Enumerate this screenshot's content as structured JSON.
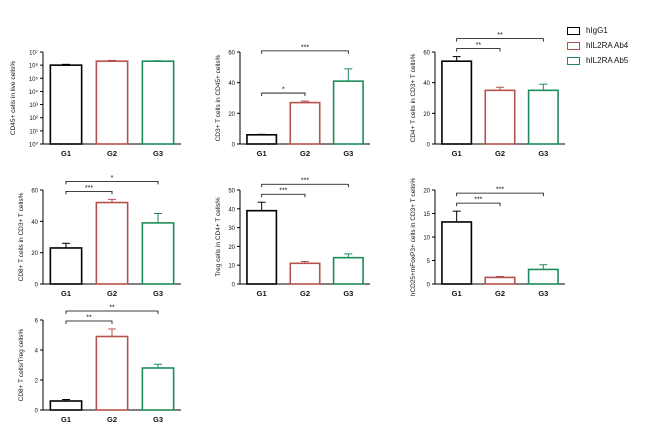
{
  "legend": {
    "items": [
      {
        "label": "hIgG1",
        "color": "#000000"
      },
      {
        "label": "hIL2RA Ab4",
        "color": "#b5524b"
      },
      {
        "label": "hIL2RA Ab5",
        "color": "#1e8c5a"
      }
    ]
  },
  "chart_data": [
    {
      "type": "bar",
      "categories": [
        "G1",
        "G2",
        "G3"
      ],
      "values": [
        1000000,
        2000000,
        2000000
      ],
      "errors": [
        150000,
        300000,
        150000
      ],
      "ylabel": "CD45+ cells in live cells%",
      "yscale": "log",
      "ylim": [
        1,
        10000000
      ],
      "yticks": [
        1,
        10,
        100,
        1000,
        10000,
        100000,
        1000000,
        10000000
      ],
      "ytick_labels": [
        "10⁰",
        "10¹",
        "10²",
        "10³",
        "10⁴",
        "10⁵",
        "10⁶",
        "10⁷"
      ],
      "colors": [
        "#000000",
        "#b5524b",
        "#1e8c5a"
      ],
      "annotations": []
    },
    {
      "type": "bar",
      "categories": [
        "G1",
        "G2",
        "G3"
      ],
      "values": [
        6,
        27,
        41
      ],
      "errors": [
        0.3,
        1,
        8
      ],
      "ylabel": "CD3+ T cells in CD45+ cells%",
      "yscale": "linear",
      "ylim": [
        0,
        60
      ],
      "yticks": [
        0,
        20,
        40,
        60
      ],
      "ytick_labels": [
        "0",
        "20",
        "40",
        "60"
      ],
      "colors": [
        "#000000",
        "#b5524b",
        "#1e8c5a"
      ],
      "annotations": [
        {
          "from": 0,
          "to": 1,
          "label": "*"
        },
        {
          "from": 0,
          "to": 2,
          "label": "***"
        }
      ]
    },
    {
      "type": "bar",
      "categories": [
        "G1",
        "G2",
        "G3"
      ],
      "values": [
        54,
        35,
        35
      ],
      "errors": [
        3,
        2,
        4
      ],
      "ylabel": "CD4+ T cells in CD3+ T cells%",
      "yscale": "linear",
      "ylim": [
        0,
        60
      ],
      "yticks": [
        0,
        20,
        40,
        60
      ],
      "ytick_labels": [
        "0",
        "20",
        "40",
        "60"
      ],
      "colors": [
        "#000000",
        "#b5524b",
        "#1e8c5a"
      ],
      "annotations": [
        {
          "from": 0,
          "to": 1,
          "label": "**"
        },
        {
          "from": 0,
          "to": 2,
          "label": "**"
        }
      ]
    },
    {
      "type": "bar",
      "categories": [
        "G1",
        "G2",
        "G3"
      ],
      "values": [
        23,
        52,
        39
      ],
      "errors": [
        3,
        2,
        6
      ],
      "ylabel": "CD8+ T cells in CD3+ T cells%",
      "yscale": "linear",
      "ylim": [
        0,
        60
      ],
      "yticks": [
        0,
        20,
        40,
        60
      ],
      "ytick_labels": [
        "0",
        "20",
        "40",
        "60"
      ],
      "colors": [
        "#000000",
        "#b5524b",
        "#1e8c5a"
      ],
      "annotations": [
        {
          "from": 0,
          "to": 1,
          "label": "***"
        },
        {
          "from": 0,
          "to": 2,
          "label": "*"
        }
      ]
    },
    {
      "type": "bar",
      "categories": [
        "G1",
        "G2",
        "G3"
      ],
      "values": [
        39,
        11,
        14
      ],
      "errors": [
        4.5,
        1,
        2
      ],
      "ylabel": "Treg cells in CD4+ T cells%",
      "yscale": "linear",
      "ylim": [
        0,
        50
      ],
      "yticks": [
        0,
        10,
        20,
        30,
        40,
        50
      ],
      "ytick_labels": [
        "0",
        "10",
        "20",
        "30",
        "40",
        "50"
      ],
      "colors": [
        "#000000",
        "#b5524b",
        "#1e8c5a"
      ],
      "annotations": [
        {
          "from": 0,
          "to": 1,
          "label": "***"
        },
        {
          "from": 0,
          "to": 2,
          "label": "***"
        }
      ]
    },
    {
      "type": "bar",
      "categories": [
        "G1",
        "G2",
        "G3"
      ],
      "values": [
        13.2,
        1.4,
        3.1
      ],
      "errors": [
        2.3,
        0.2,
        1
      ],
      "ylabel": "hCD25+mFoxP3+ cells in CD3+ T cells%",
      "yscale": "linear",
      "ylim": [
        0,
        20
      ],
      "yticks": [
        0,
        5,
        10,
        15,
        20
      ],
      "ytick_labels": [
        "0",
        "5",
        "10",
        "15",
        "20"
      ],
      "colors": [
        "#000000",
        "#b5524b",
        "#1e8c5a"
      ],
      "annotations": [
        {
          "from": 0,
          "to": 1,
          "label": "***"
        },
        {
          "from": 0,
          "to": 2,
          "label": "***"
        }
      ]
    },
    {
      "type": "bar",
      "categories": [
        "G1",
        "G2",
        "G3"
      ],
      "values": [
        0.6,
        4.9,
        2.8
      ],
      "errors": [
        0.1,
        0.5,
        0.25
      ],
      "ylabel": "CD8+ T cells/Treg cells%",
      "yscale": "linear",
      "ylim": [
        0,
        6
      ],
      "yticks": [
        0,
        2,
        4,
        6
      ],
      "ytick_labels": [
        "0",
        "2",
        "4",
        "6"
      ],
      "colors": [
        "#000000",
        "#b5524b",
        "#1e8c5a"
      ],
      "annotations": [
        {
          "from": 0,
          "to": 1,
          "label": "**"
        },
        {
          "from": 0,
          "to": 2,
          "label": "**"
        }
      ]
    }
  ]
}
